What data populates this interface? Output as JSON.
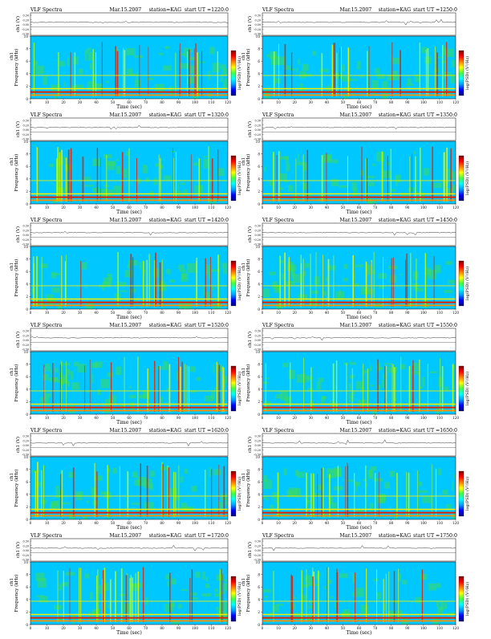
{
  "header": {
    "left": "VLF Spectra",
    "date": "Mar.15.2007",
    "station": "station=KAG",
    "start_prefix": "start  UT ="
  },
  "axes": {
    "time_label": "Time  (sec)",
    "freq_label": "Frequency  (kHz)",
    "ch_label": "ch1",
    "waveform_label": "ch1 (V)",
    "colorbar_label": "log(PSD) (V²/Hz)",
    "time_ticks": [
      "0",
      "10",
      "20",
      "30",
      "40",
      "50",
      "60",
      "70",
      "80",
      "90",
      "100",
      "110",
      "120"
    ],
    "freq_ticks": [
      "0",
      "2",
      "4",
      "6",
      "8",
      "10"
    ],
    "waveform_ticks": [
      "0.30",
      "0.20",
      "0.00",
      "-0.20",
      "-0.30"
    ]
  },
  "colors": {
    "background": "#00c8ff",
    "noise_green": "#3cdc5a",
    "band_yellow": "#f0f000",
    "band_red": "#e02000",
    "colorbar": [
      "#000080",
      "#0000ff",
      "#00a0ff",
      "#00ffff",
      "#40ff40",
      "#ffff00",
      "#ff8000",
      "#ff0000",
      "#800000"
    ]
  },
  "chart_data": [
    {
      "type": "heatmap",
      "start_ut": "1220:0",
      "xlim": [
        0,
        120
      ],
      "ylim": [
        0,
        10
      ],
      "xlabel": "Time  (sec)",
      "ylabel": "Frequency  (kHz)"
    },
    {
      "type": "heatmap",
      "start_ut": "1250:0",
      "xlim": [
        0,
        120
      ],
      "ylim": [
        0,
        10
      ],
      "xlabel": "Time  (sec)",
      "ylabel": "Frequency  (kHz)"
    },
    {
      "type": "heatmap",
      "start_ut": "1320:0",
      "xlim": [
        0,
        120
      ],
      "ylim": [
        0,
        10
      ],
      "xlabel": "Time  (sec)",
      "ylabel": "Frequency  (kHz)"
    },
    {
      "type": "heatmap",
      "start_ut": "1350:0",
      "xlim": [
        0,
        120
      ],
      "ylim": [
        0,
        10
      ],
      "xlabel": "Time  (sec)",
      "ylabel": "Frequency  (kHz)"
    },
    {
      "type": "heatmap",
      "start_ut": "1420:0",
      "xlim": [
        0,
        120
      ],
      "ylim": [
        0,
        10
      ],
      "xlabel": "Time  (sec)",
      "ylabel": "Frequency  (kHz)"
    },
    {
      "type": "heatmap",
      "start_ut": "1450:0",
      "xlim": [
        0,
        120
      ],
      "ylim": [
        0,
        10
      ],
      "xlabel": "Time  (sec)",
      "ylabel": "Frequency  (kHz)"
    },
    {
      "type": "heatmap",
      "start_ut": "1520:0",
      "xlim": [
        0,
        120
      ],
      "ylim": [
        0,
        10
      ],
      "xlabel": "Time  (sec)",
      "ylabel": "Frequency  (kHz)"
    },
    {
      "type": "heatmap",
      "start_ut": "1550:0",
      "xlim": [
        0,
        120
      ],
      "ylim": [
        0,
        10
      ],
      "xlabel": "Time  (sec)",
      "ylabel": "Frequency  (kHz)"
    },
    {
      "type": "heatmap",
      "start_ut": "1620:0",
      "xlim": [
        0,
        120
      ],
      "ylim": [
        0,
        10
      ],
      "xlabel": "Time  (sec)",
      "ylabel": "Frequency  (kHz)"
    },
    {
      "type": "heatmap",
      "start_ut": "1650:0",
      "xlim": [
        0,
        120
      ],
      "ylim": [
        0,
        10
      ],
      "xlabel": "Time  (sec)",
      "ylabel": "Frequency  (kHz)"
    },
    {
      "type": "heatmap",
      "start_ut": "1720:0",
      "xlim": [
        0,
        120
      ],
      "ylim": [
        0,
        10
      ],
      "xlabel": "Time  (sec)",
      "ylabel": "Frequency  (kHz)"
    },
    {
      "type": "heatmap",
      "start_ut": "1750:0",
      "xlim": [
        0,
        120
      ],
      "ylim": [
        0,
        10
      ],
      "xlabel": "Time  (sec)",
      "ylabel": "Frequency  (kHz)"
    }
  ]
}
